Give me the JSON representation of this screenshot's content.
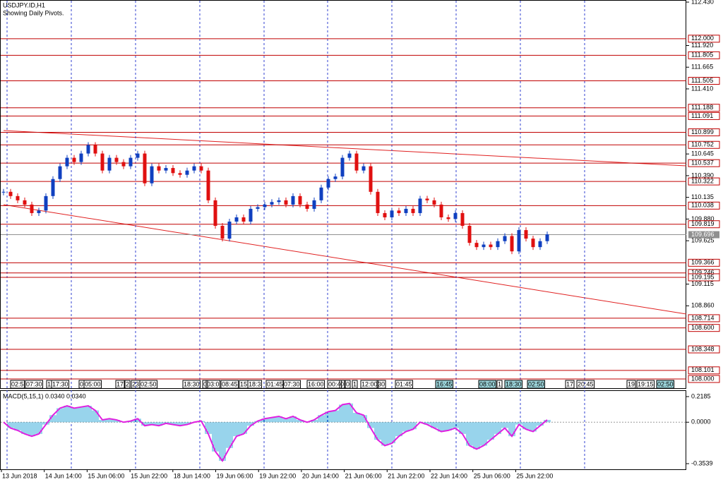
{
  "header": {
    "symbol": "USDJPY.ID,H1",
    "note": "Showing Daily Pivots."
  },
  "chart_data": {
    "type": "candlestick",
    "ylim": [
      108.0,
      112.43
    ],
    "yticks": [
      {
        "value": 112.43,
        "label": "112.430"
      },
      {
        "value": 111.92,
        "label": "111.920"
      },
      111.665,
      {
        "value": 111.41,
        "label": "111.410"
      },
      110.645,
      {
        "value": 110.39,
        "label": "110.390"
      },
      110.135,
      {
        "value": 109.88,
        "label": "109.880"
      },
      109.625,
      109.115,
      {
        "value": 108.86,
        "label": "108.860"
      }
    ],
    "pivots": [
      {
        "value": 112.0,
        "label": "112.000"
      },
      111.805,
      111.505,
      111.188,
      111.091,
      110.899,
      110.752,
      110.537,
      110.322,
      110.038,
      109.819,
      109.366,
      109.246,
      109.195,
      108.714,
      {
        "value": 108.6,
        "label": "108.600"
      },
      108.348,
      108.101,
      {
        "value": 108.0,
        "label": "108.000"
      }
    ],
    "current_price": 109.696,
    "closes": [
      110.2,
      110.15,
      110.1,
      110.05,
      109.95,
      109.98,
      110.15,
      110.35,
      110.5,
      110.6,
      110.55,
      110.65,
      110.75,
      110.65,
      110.45,
      110.6,
      110.55,
      110.5,
      110.6,
      110.65,
      110.3,
      110.5,
      110.45,
      110.48,
      110.42,
      110.4,
      110.45,
      110.5,
      110.45,
      110.1,
      109.8,
      109.65,
      109.85,
      109.9,
      109.85,
      110.0,
      110.02,
      110.05,
      110.08,
      110.1,
      110.05,
      110.15,
      110.05,
      110.0,
      110.1,
      110.25,
      110.35,
      110.38,
      110.6,
      110.65,
      110.45,
      110.5,
      110.2,
      109.95,
      109.9,
      109.98,
      109.95,
      110.0,
      109.95,
      110.12,
      110.1,
      110.05,
      109.9,
      109.88,
      109.95,
      109.8,
      109.6,
      109.55,
      109.58,
      109.55,
      109.62,
      109.68,
      109.5,
      109.75,
      109.65,
      109.55,
      109.62,
      109.7
    ],
    "session_labels": [
      "02:5",
      "07:30",
      "1",
      "17:30",
      "0",
      "05:00",
      "17",
      "2",
      "23",
      "02:50",
      "18:30",
      "0",
      "03:0",
      "08:45",
      "15",
      "18:3",
      "01:45",
      "07:30",
      "16:00",
      "00:4",
      "0",
      "0",
      "1",
      "12:00",
      "30",
      "01:45",
      "16:45",
      "08:00",
      "1",
      "18:30",
      "02:50",
      "17",
      "20:45",
      "19",
      "19:15",
      "02:50"
    ],
    "x_labels": [
      "13 Jun 2018",
      "14 Jun 14:00",
      "15 Jun 06:00",
      "15 Jun 22:00",
      "18 Jun 14:00",
      "19 Jun 06:00",
      "19 Jun 22:00",
      "20 Jun 14:00",
      "21 Jun 06:00",
      "21 Jun 22:00",
      "22 Jun 14:00",
      "25 Jun 06:00",
      "25 Jun 22:00"
    ],
    "macd": {
      "label": "MACD(5,15,1) 0.0340 0.0340",
      "ylim": [
        -0.3539,
        0.2185
      ],
      "yticks": [
        0.2185,
        {
          "value": 0,
          "label": "0.0000"
        },
        -0.3539
      ],
      "values": [
        0.0,
        -0.05,
        -0.07,
        -0.1,
        -0.12,
        -0.1,
        -0.02,
        0.06,
        0.12,
        0.14,
        0.12,
        0.13,
        0.14,
        0.1,
        0.02,
        0.03,
        0.02,
        0.0,
        0.01,
        0.03,
        -0.03,
        -0.02,
        -0.03,
        -0.01,
        -0.02,
        -0.03,
        -0.02,
        0.0,
        0.01,
        -0.1,
        -0.25,
        -0.33,
        -0.22,
        -0.12,
        -0.1,
        -0.03,
        0.01,
        0.03,
        0.04,
        0.05,
        0.03,
        0.05,
        0.02,
        0.0,
        0.02,
        0.06,
        0.09,
        0.1,
        0.15,
        0.16,
        0.08,
        0.06,
        -0.05,
        -0.15,
        -0.2,
        -0.18,
        -0.12,
        -0.08,
        -0.06,
        0.0,
        -0.02,
        -0.05,
        -0.08,
        -0.07,
        -0.05,
        -0.1,
        -0.2,
        -0.23,
        -0.2,
        -0.15,
        -0.1,
        -0.05,
        -0.12,
        -0.02,
        -0.06,
        -0.08,
        -0.03,
        0.02
      ]
    }
  }
}
